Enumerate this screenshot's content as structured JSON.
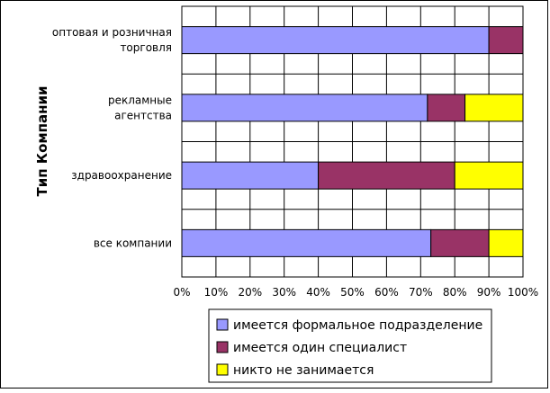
{
  "chart_data": {
    "type": "bar",
    "orientation": "horizontal",
    "stacked": true,
    "normalized": true,
    "title": "",
    "ylabel": "Тип Компании",
    "xlabel": "",
    "categories": [
      [
        "оптовая и розничная",
        "торговля"
      ],
      [
        "рекламные",
        "агентства"
      ],
      [
        "здравоохранение"
      ],
      [
        "все компании"
      ]
    ],
    "series": [
      {
        "name": "имеется формальное подразделение",
        "color": "#9999ff",
        "values": [
          0.9,
          0.72,
          0.4,
          0.73
        ]
      },
      {
        "name": "имеется один специалист",
        "color": "#993366",
        "values": [
          0.1,
          0.11,
          0.4,
          0.17
        ]
      },
      {
        "name": "никто не занимается",
        "color": "#ffff00",
        "values": [
          0.0,
          0.17,
          0.2,
          0.1
        ]
      }
    ],
    "xlim": [
      0,
      1
    ],
    "xticks": [
      "0%",
      "10%",
      "20%",
      "30%",
      "40%",
      "50%",
      "60%",
      "70%",
      "80%",
      "90%",
      "100%"
    ],
    "grid": true,
    "legend_position": "bottom"
  }
}
